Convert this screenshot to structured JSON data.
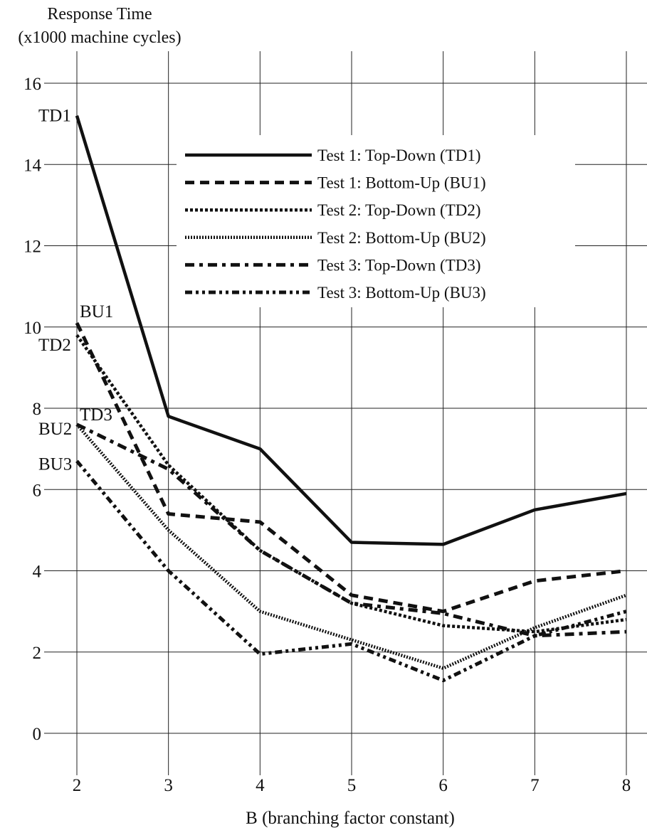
{
  "chart_data": {
    "type": "line",
    "ylabel_line1": "Response Time",
    "ylabel_line2": "(x1000 machine cycles)",
    "xlabel": "B (branching factor constant)",
    "x": [
      2,
      3,
      4,
      5,
      6,
      7,
      8
    ],
    "xlim": [
      2,
      8
    ],
    "ylim": [
      0,
      16
    ],
    "yticks": [
      0,
      2,
      4,
      6,
      8,
      10,
      12,
      14,
      16
    ],
    "grid": true,
    "legend_position": "top-right",
    "series": [
      {
        "name": "Test 1: Top-Down (TD1)",
        "label": "TD1",
        "style": "solid",
        "values": [
          15.2,
          7.8,
          7.0,
          4.7,
          4.65,
          5.5,
          5.9
        ]
      },
      {
        "name": "Test 1: Bottom-Up (BU1)",
        "label": "BU1",
        "style": "dashed",
        "values": [
          10.1,
          5.4,
          5.2,
          3.4,
          3.0,
          3.75,
          4.0
        ]
      },
      {
        "name": "Test 2: Top-Down (TD2)",
        "label": "TD2",
        "style": "dotted",
        "values": [
          9.8,
          6.6,
          4.5,
          3.2,
          2.65,
          2.5,
          2.8
        ]
      },
      {
        "name": "Test 2: Bottom-Up (BU2)",
        "label": "BU2",
        "style": "fine-dotted",
        "values": [
          7.6,
          5.0,
          3.0,
          2.3,
          1.6,
          2.6,
          3.4
        ]
      },
      {
        "name": "Test 3: Top-Down (TD3)",
        "label": "TD3",
        "style": "dash-dot",
        "values": [
          7.6,
          6.5,
          4.5,
          3.2,
          2.95,
          2.4,
          2.5
        ]
      },
      {
        "name": "Test 3: Bottom-Up (BU3)",
        "label": "BU3",
        "style": "dash-dot-dot",
        "values": [
          6.7,
          4.0,
          1.95,
          2.2,
          1.3,
          2.4,
          3.0
        ]
      }
    ]
  }
}
